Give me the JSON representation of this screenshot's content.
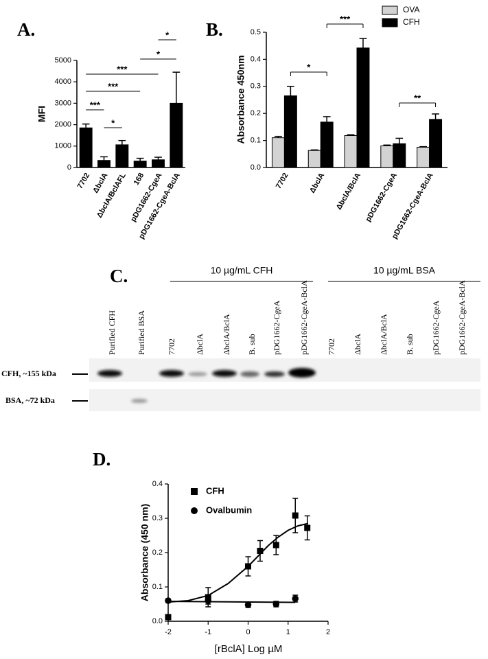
{
  "chart_data": [
    {
      "type": "bar",
      "panel": "A.",
      "ylabel": "MFI",
      "categories": [
        "7702",
        "ΔbclA",
        "ΔbclA/BclAFL",
        "168",
        "pDG1662-CgeA",
        "pDG1662-CgeA-BclA"
      ],
      "values": [
        1850,
        330,
        1060,
        300,
        360,
        3000
      ],
      "errors": [
        180,
        170,
        200,
        130,
        120,
        1450
      ],
      "color": "#000000",
      "ylim": [
        0,
        5000
      ],
      "yticks": [
        0,
        1000,
        2000,
        3000,
        4000,
        5000
      ],
      "annotations": [
        "***",
        "*",
        "***",
        "***",
        "*",
        "*"
      ]
    },
    {
      "type": "bar",
      "panel": "B.",
      "ylabel": "Absorbance 450nm",
      "categories": [
        "7702",
        "ΔbclA",
        "ΔbclA/BclA",
        "pDG1662-CgeA",
        "pDG1662-CgeA-BclA"
      ],
      "series": [
        {
          "name": "OVA",
          "color": "#d3d3d3",
          "values": [
            0.11,
            0.063,
            0.118,
            0.08,
            0.075
          ],
          "errors": [
            0.005,
            0.002,
            0.003,
            0.003,
            0.002
          ]
        },
        {
          "name": "CFH",
          "color": "#000000",
          "values": [
            0.265,
            0.168,
            0.442,
            0.088,
            0.178
          ],
          "errors": [
            0.035,
            0.02,
            0.035,
            0.02,
            0.02
          ]
        }
      ],
      "ylim": [
        0,
        0.5
      ],
      "yticks": [
        {
          "value": 0,
          "label": "0.0"
        },
        0.1,
        0.2,
        0.3,
        0.4,
        0.5
      ],
      "annotations": [
        "*",
        "***",
        "**"
      ],
      "legend": "upper right"
    },
    {
      "type": "scatter",
      "panel": "D.",
      "xlabel": "[rBclA] Log µM",
      "ylabel": "Absorbance (450 nm)",
      "xlim": [
        -2,
        2
      ],
      "xticks": [
        -2,
        -1,
        0,
        1,
        2
      ],
      "ylim": [
        0,
        0.4
      ],
      "yticks": [
        {
          "value": 0,
          "label": "0.0"
        },
        0.1,
        0.2,
        0.3,
        0.4
      ],
      "series": [
        {
          "name": "CFH",
          "marker": "square",
          "color": "#000000",
          "x": [
            -2,
            -1,
            0,
            0.3,
            0.7,
            1.18,
            1.48
          ],
          "values": [
            0.012,
            0.07,
            0.16,
            0.205,
            0.222,
            0.308,
            0.272
          ],
          "errors": [
            0.005,
            0.028,
            0.028,
            0.03,
            0.028,
            0.05,
            0.035
          ],
          "fit": {
            "x": [
              -2,
              -1.5,
              -1,
              -0.5,
              0,
              0.25,
              0.5,
              0.75,
              1,
              1.25,
              1.5
            ],
            "values": [
              0.056,
              0.06,
              0.075,
              0.11,
              0.16,
              0.19,
              0.22,
              0.245,
              0.265,
              0.278,
              0.285
            ]
          }
        },
        {
          "name": "Ovalbumin",
          "marker": "circle",
          "color": "#000000",
          "x": [
            -2,
            -1,
            0,
            0.7,
            1.18
          ],
          "values": [
            0.06,
            0.06,
            0.048,
            0.05,
            0.066
          ],
          "errors": [
            0.005,
            0.01,
            0.008,
            0.008,
            0.01
          ],
          "fit": {
            "x": [
              -2,
              1.18
            ],
            "values": [
              0.058,
              0.055
            ]
          }
        }
      ],
      "legend": "upper left"
    }
  ],
  "blot": {
    "panel": "C.",
    "groups": [
      "10 µg/mL CFH",
      "10 µg/mL BSA"
    ],
    "lanes": [
      "Purified CFH",
      "Purified BSA",
      "7702",
      "ΔbclA",
      "ΔbclA/BclA",
      "B. sub",
      "pDG1662-CgeA",
      "pDG1662-CgeA-BclA",
      "7702",
      "ΔbclA",
      "ΔbclA/BclA",
      "B. sub",
      "pDG1662-CgeA",
      "pDG1662-CgeA-BclA"
    ],
    "rows": [
      "CFH, ~155 kDa",
      "BSA, ~72 kDa"
    ]
  }
}
